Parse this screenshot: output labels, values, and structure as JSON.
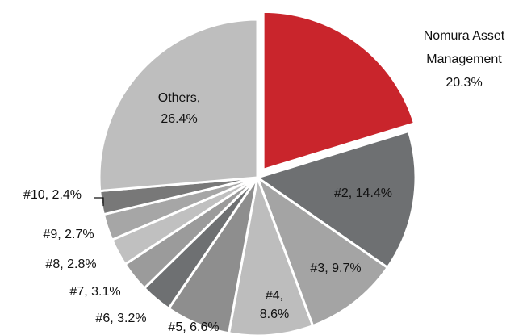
{
  "chart_data": {
    "type": "pie",
    "labels": [
      [
        "Nomura Asset",
        "Management",
        "20.3%"
      ],
      [
        "#2, 14.4%"
      ],
      [
        "#3, 9.7%"
      ],
      [
        "#4,",
        "8.6%"
      ],
      [
        "#5, 6.6%"
      ],
      [
        "#6, 3.2%"
      ],
      [
        "#7, 3.1%"
      ],
      [
        "#8, 2.8%"
      ],
      [
        "#9, 2.7%"
      ],
      [
        "#10, 2.4%"
      ],
      [
        "Others,",
        "26.4%"
      ]
    ],
    "values": [
      20.3,
      14.4,
      9.7,
      8.6,
      6.6,
      3.2,
      3.1,
      2.8,
      2.7,
      2.4,
      26.4
    ],
    "colors": [
      "#c9252c",
      "#6e7072",
      "#a4a4a4",
      "#bdbdbd",
      "#8e8e8e",
      "#6e7072",
      "#9b9b9b",
      "#c0c0c0",
      "#a6a6a6",
      "#787878",
      "#bebebe"
    ]
  }
}
